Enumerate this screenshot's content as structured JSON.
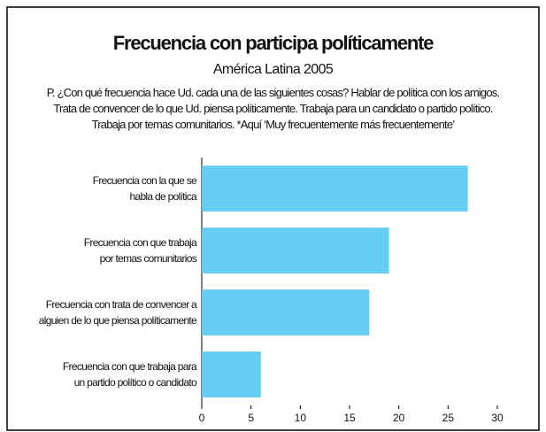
{
  "chart_data": {
    "type": "bar",
    "orientation": "horizontal",
    "title": "Frecuencia con participa políticamente",
    "subtitle": "América Latina 2005",
    "description": "P. ¿Con qué frecuencia hace Ud. cada una de las siguientes cosas? Hablar de política con los amigos.\nTrata de convencer de lo que Ud. piensa políticamente. Trabaja para un candidato o partido político.\nTrabaja por temas comunitarios. *Aquí ‘Muy frecuentemente más frecuentemente’",
    "categories": [
      "Frecuencia con la que se\nhabla de política",
      "Frecuencia con que trabaja\npor temas comunitarios",
      "Frecuencia con trata de convencer a\nalguien de lo que piensa políticamente",
      "Frecuencia con que trabaja para\nun partido político o candidato"
    ],
    "values": [
      27,
      19,
      17,
      6
    ],
    "color": "#66cdf5",
    "xlim": [
      0,
      30
    ],
    "xticks": [
      0,
      5,
      10,
      15,
      20,
      25,
      30
    ],
    "grid": false
  }
}
